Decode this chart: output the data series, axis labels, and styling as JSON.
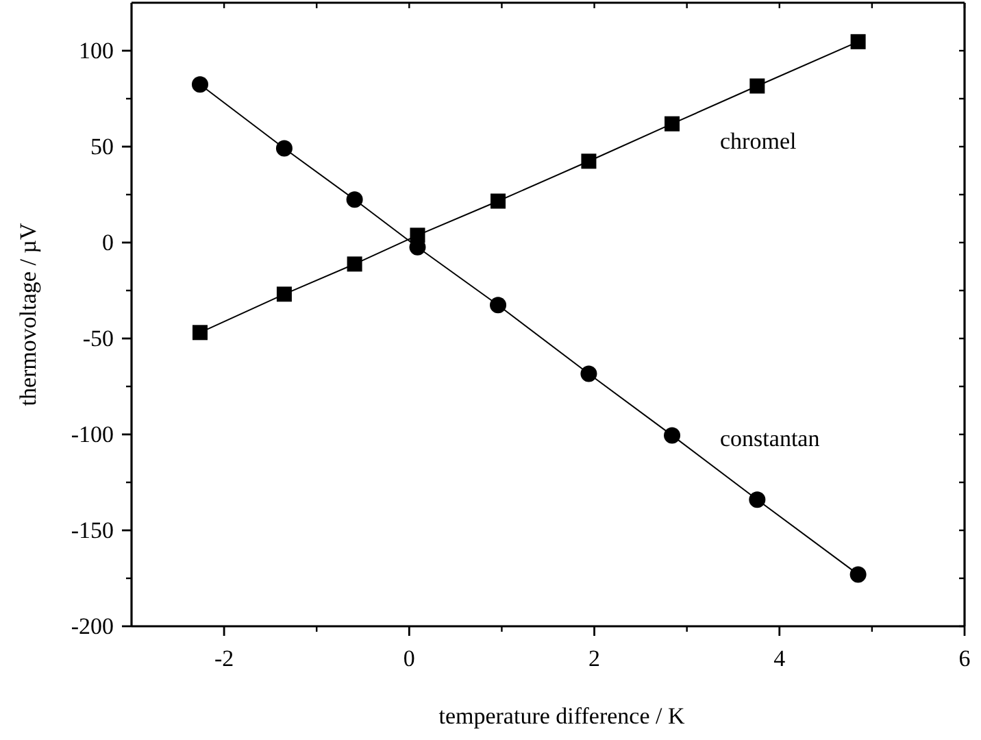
{
  "chart_data": {
    "type": "line",
    "xlabel": "temperature difference / K",
    "ylabel": "thermovoltage / µV",
    "x": [
      -2.26,
      -1.35,
      -0.59,
      0.09,
      0.96,
      1.94,
      2.84,
      3.76,
      4.85
    ],
    "series": [
      {
        "name": "chromel",
        "color": "#000000",
        "marker": "square",
        "values": [
          -46.9,
          -26.9,
          -11.2,
          3.8,
          21.6,
          42.4,
          61.9,
          81.6,
          104.7
        ]
      },
      {
        "name": "constantan",
        "color": "#000000",
        "marker": "circle",
        "values": [
          82.4,
          49.1,
          22.4,
          -2.4,
          -32.6,
          -68.4,
          -100.5,
          -134,
          -173
        ]
      }
    ],
    "xlim": [
      -3,
      6
    ],
    "xticks": [
      -2,
      0,
      2,
      4,
      6
    ],
    "ylim": [
      -200,
      125
    ],
    "yticks": [
      -200,
      -150,
      -100,
      -50,
      0,
      50,
      100
    ],
    "grid": false,
    "line_style": "solid"
  }
}
